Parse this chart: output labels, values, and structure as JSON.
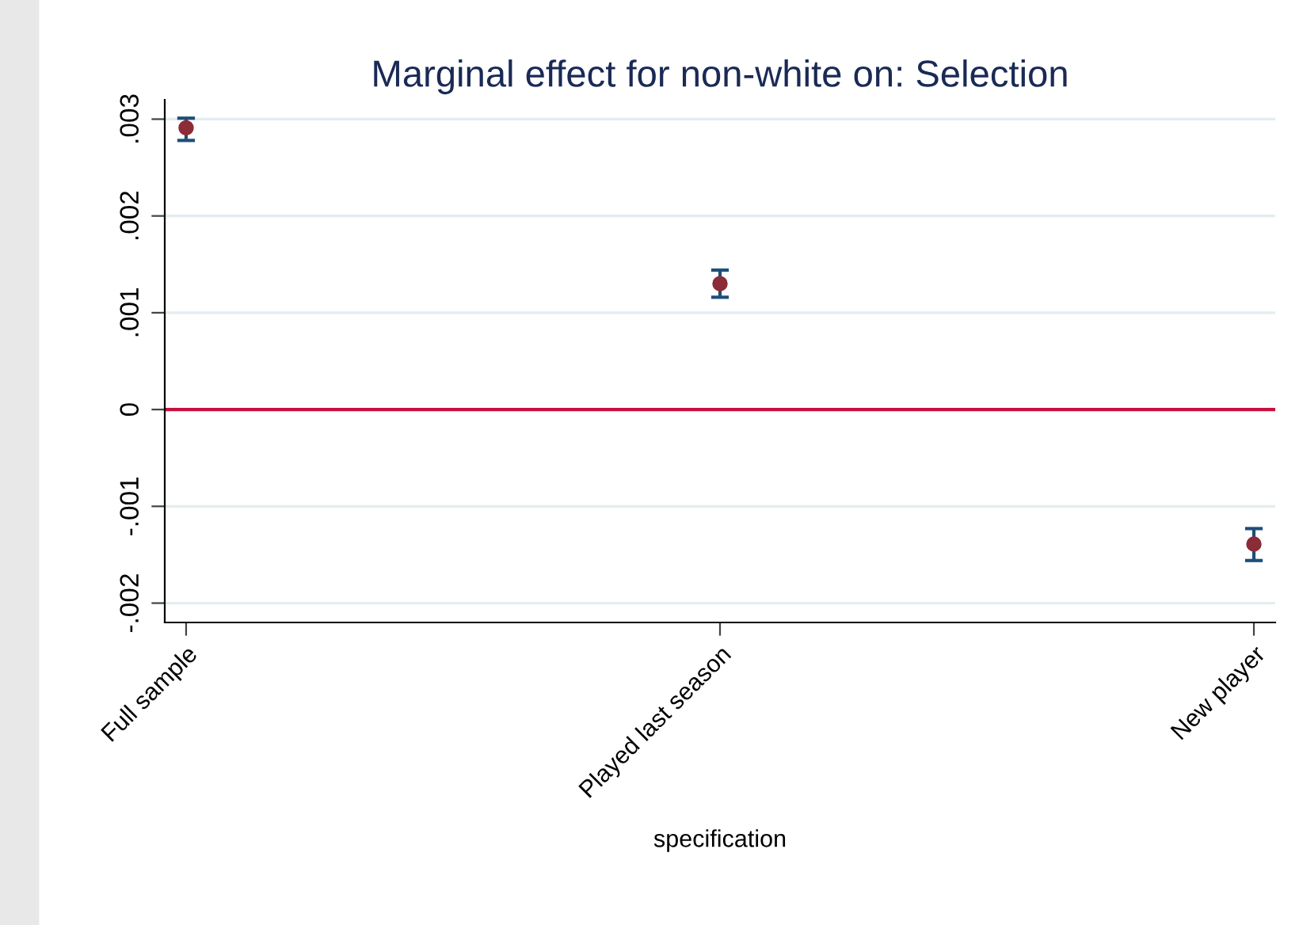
{
  "chart_data": {
    "type": "scatter",
    "title": "Marginal effect for non-white on: Selection",
    "xlabel": "specification",
    "categories": [
      "Full sample",
      "Played last season",
      "New player"
    ],
    "series": [
      {
        "color": "#8b2c36",
        "values": [
          0.00291,
          0.0013,
          -0.00139
        ],
        "errors": [
          [
            0.00278,
            0.00301
          ],
          [
            0.00116,
            0.00144
          ],
          [
            -0.00156,
            -0.00123
          ]
        ]
      }
    ],
    "ylim": [
      -0.0022,
      0.0032
    ],
    "yticks": [
      {
        "value": -0.002,
        "label": "-.002"
      },
      {
        "value": -0.001,
        "label": "-.001"
      },
      0,
      {
        "value": 0.001,
        "label": ".001"
      },
      {
        "value": 0.002,
        "label": ".002"
      },
      {
        "value": 0.003,
        "label": ".003"
      }
    ],
    "ref_lines": [
      {
        "axis": "y",
        "value": 0,
        "label": null,
        "color": "#c8103e"
      }
    ],
    "grid": "y",
    "marker": "circle",
    "legend": false
  }
}
